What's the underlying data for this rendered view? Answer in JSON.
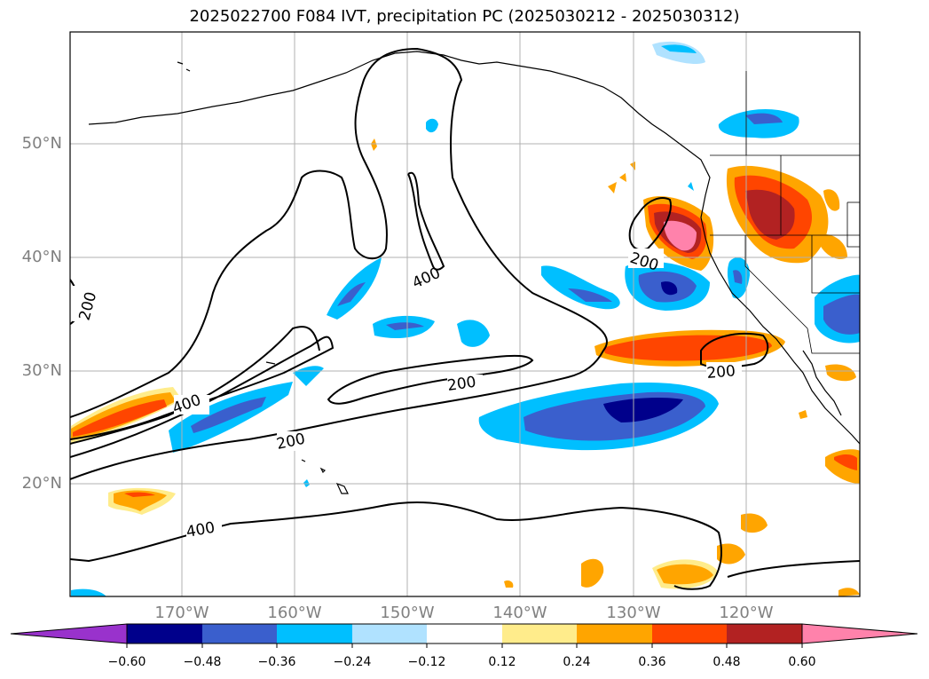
{
  "title": "2025022700 F084 IVT, precipitation PC (2025030212 - 2025030312)",
  "lat_labels": [
    "50°N",
    "40°N",
    "30°N",
    "20°N"
  ],
  "lon_labels": [
    "170°W",
    "160°W",
    "150°W",
    "140°W",
    "130°W",
    "120°W"
  ],
  "contour_labels": [
    "200",
    "400",
    "200",
    "400",
    "200",
    "400",
    "200",
    "200"
  ],
  "colorbar": {
    "ticks": [
      "−0.60",
      "−0.48",
      "−0.36",
      "−0.24",
      "−0.12",
      "0.12",
      "0.24",
      "0.36",
      "0.48",
      "0.60"
    ],
    "colors": [
      "#9932cc",
      "#00008b",
      "#3a5fcd",
      "#00bfff",
      "#b0e2ff",
      "#ffffff",
      "#ffec8b",
      "#ffa500",
      "#ff4500",
      "#b22222",
      "#ff82ab"
    ]
  }
}
